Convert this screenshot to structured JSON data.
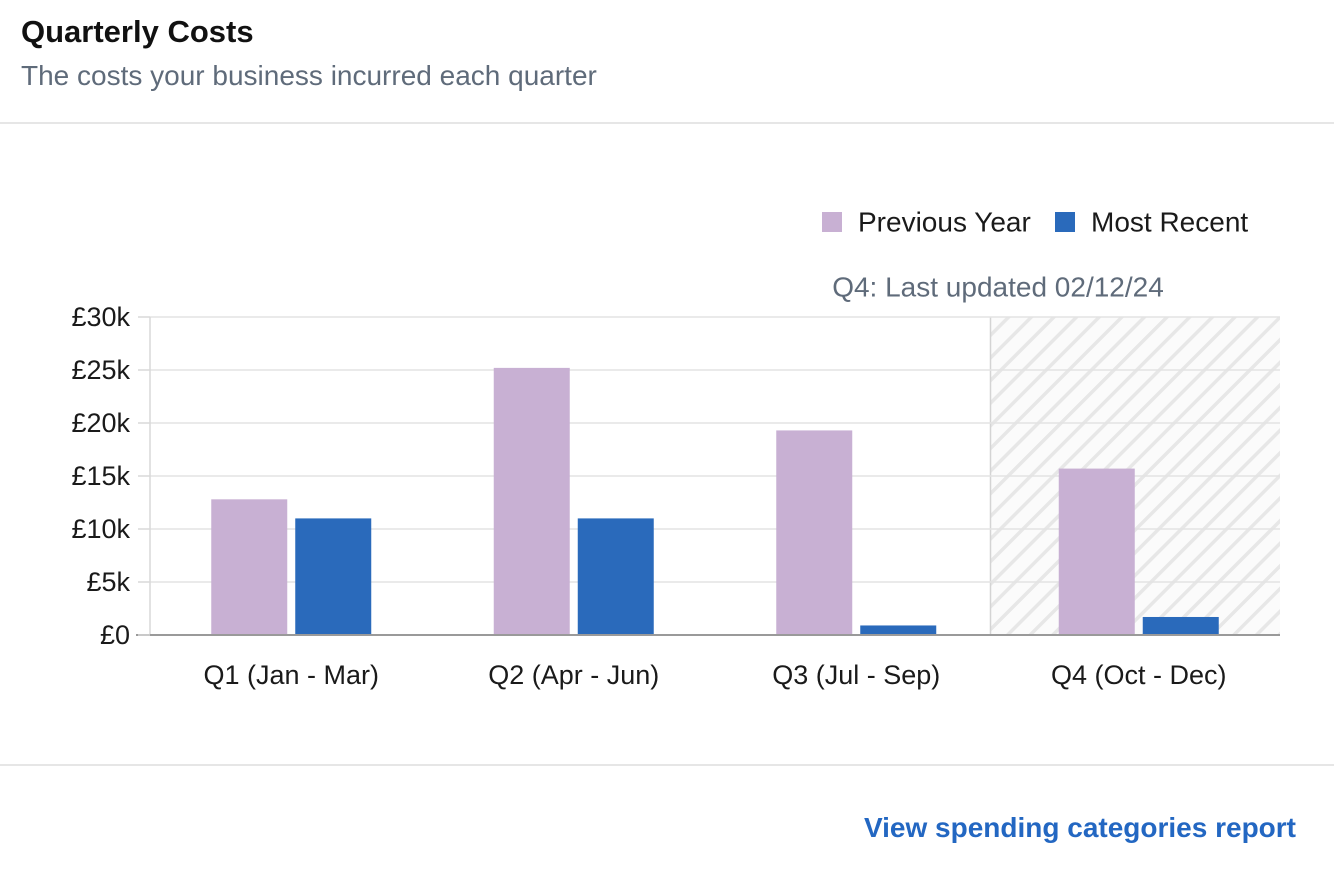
{
  "header": {
    "title": "Quarterly Costs",
    "subtitle": "The costs your business incurred each quarter"
  },
  "chart_data": {
    "type": "bar",
    "categories": [
      "Q1 (Jan - Mar)",
      "Q2 (Apr - Jun)",
      "Q3 (Jul - Sep)",
      "Q4 (Oct - Dec)"
    ],
    "series": [
      {
        "name": "Previous Year",
        "color": "#c8b0d3",
        "values": [
          12800,
          25200,
          19300,
          15700
        ]
      },
      {
        "name": "Most Recent",
        "color": "#2a6abb",
        "values": [
          11000,
          11000,
          900,
          1700
        ]
      }
    ],
    "ylim": [
      0,
      30000
    ],
    "y_ticks": [
      0,
      5000,
      10000,
      15000,
      20000,
      25000,
      30000
    ],
    "y_tick_labels": [
      "£0",
      "£5k",
      "£10k",
      "£15k",
      "£20k",
      "£25k",
      "£30k"
    ],
    "grid": true,
    "legend_position": "top-right",
    "annotation": {
      "category": "Q4 (Oct - Dec)",
      "text": "Q4: Last updated 02/12/24",
      "style": "hatched"
    },
    "xlabel": "",
    "ylabel": ""
  },
  "footer": {
    "link_label": "View spending categories report",
    "link_color": "#2367c2"
  }
}
